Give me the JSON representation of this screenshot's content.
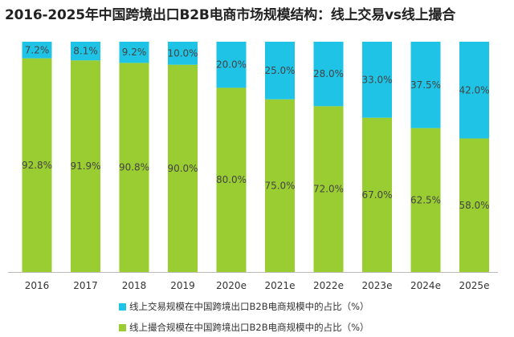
{
  "chart_data": {
    "type": "bar",
    "stacked": true,
    "title": "2016-2025年中国跨境出口B2B电商市场规模结构：线上交易vs线上撮合",
    "categories": [
      "2016",
      "2017",
      "2018",
      "2019",
      "2020e",
      "2021e",
      "2022e",
      "2023e",
      "2024e",
      "2025e"
    ],
    "series": [
      {
        "name": "线上撮合规模在中国跨境出口B2B电商规模中的占比（%）",
        "color": "#9ACD32",
        "values": [
          92.8,
          91.9,
          90.8,
          90.0,
          80.0,
          75.0,
          72.0,
          67.0,
          62.5,
          58.0
        ],
        "labels": [
          "92.8%",
          "91.9%",
          "90.8%",
          "90.0%",
          "80.0%",
          "75.0%",
          "72.0%",
          "67.0%",
          "62.5%",
          "58.0%"
        ]
      },
      {
        "name": "线上交易规模在中国跨境出口B2B电商规模中的占比（%）",
        "color": "#1FC3E6",
        "values": [
          7.2,
          8.1,
          9.2,
          10.0,
          20.0,
          25.0,
          28.0,
          33.0,
          37.5,
          42.0
        ],
        "labels": [
          "7.2%",
          "8.1%",
          "9.2%",
          "10.0%",
          "20.0%",
          "25.0%",
          "28.0%",
          "33.0%",
          "37.5%",
          "42.0%"
        ]
      }
    ],
    "ylim": [
      0,
      100
    ],
    "xlabel": "",
    "ylabel": "",
    "legend_position": "bottom",
    "legend_order": [
      1,
      0
    ]
  }
}
